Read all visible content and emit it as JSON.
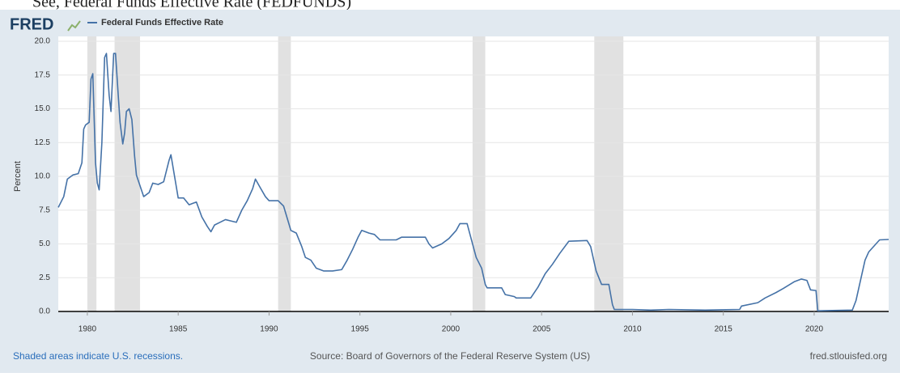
{
  "header": {
    "heading": "See, Federal Funds Effective Rate (FEDFUNDS)",
    "logo": "FRED"
  },
  "chart_data": {
    "type": "line",
    "ylabel": "Percent",
    "x": [
      1978.4,
      1978.7,
      1978.9,
      1979.2,
      1979.5,
      1979.7,
      1979.8,
      1979.9,
      1980.1,
      1980.2,
      1980.3,
      1980.45,
      1980.55,
      1980.65,
      1980.8,
      1980.95,
      1981.05,
      1981.2,
      1981.3,
      1981.45,
      1981.55,
      1981.7,
      1981.8,
      1981.95,
      1982.05,
      1982.15,
      1982.3,
      1982.45,
      1982.6,
      1982.7,
      1982.85,
      1983.1,
      1983.4,
      1983.6,
      1983.9,
      1984.2,
      1984.5,
      1984.6,
      1984.8,
      1985.0,
      1985.3,
      1985.6,
      1985.8,
      1986.0,
      1986.3,
      1986.6,
      1986.8,
      1987.0,
      1987.3,
      1987.6,
      1987.9,
      1988.2,
      1988.5,
      1988.8,
      1989.1,
      1989.25,
      1989.5,
      1989.8,
      1990.0,
      1990.5,
      1990.8,
      1991.0,
      1991.2,
      1991.5,
      1991.8,
      1992.0,
      1992.3,
      1992.6,
      1993.0,
      1993.5,
      1994.0,
      1994.3,
      1994.6,
      1994.9,
      1995.1,
      1995.5,
      1995.8,
      1996.1,
      1996.5,
      1997.0,
      1997.3,
      1998.0,
      1998.6,
      1998.8,
      1999.0,
      1999.5,
      1999.9,
      2000.3,
      2000.5,
      2000.9,
      2001.1,
      2001.4,
      2001.7,
      2001.9,
      2002.0,
      2002.8,
      2003.0,
      2003.5,
      2003.6,
      2004.4,
      2004.8,
      2005.2,
      2005.6,
      2006.0,
      2006.5,
      2007.5,
      2007.7,
      2008.0,
      2008.3,
      2008.7,
      2008.9,
      2009.0,
      2010.0,
      2011.0,
      2012.0,
      2014.0,
      2015.9,
      2016.0,
      2016.9,
      2017.3,
      2017.9,
      2018.3,
      2018.9,
      2019.3,
      2019.6,
      2019.8,
      2020.1,
      2020.2,
      2022.1,
      2022.3,
      2022.5,
      2022.8,
      2023.0,
      2023.4,
      2023.6,
      2024.1
    ],
    "series": [
      {
        "name": "Federal Funds Effective Rate",
        "color": "#4572a7",
        "values": [
          7.7,
          8.5,
          9.8,
          10.1,
          10.2,
          11,
          13.5,
          13.8,
          14,
          17.2,
          17.6,
          11,
          9.5,
          9.0,
          12.5,
          18.8,
          19.1,
          16,
          14.8,
          19.1,
          19.1,
          16,
          14,
          12.4,
          13.2,
          14.8,
          15.0,
          14.2,
          11.5,
          10.1,
          9.5,
          8.5,
          8.8,
          9.5,
          9.4,
          9.6,
          11.2,
          11.6,
          10,
          8.4,
          8.4,
          7.9,
          8.0,
          8.1,
          7.0,
          6.3,
          5.9,
          6.4,
          6.6,
          6.8,
          6.7,
          6.6,
          7.5,
          8.2,
          9.1,
          9.8,
          9.2,
          8.5,
          8.2,
          8.2,
          7.8,
          6.9,
          6.0,
          5.8,
          4.8,
          4.0,
          3.8,
          3.2,
          3.0,
          3.0,
          3.1,
          3.8,
          4.6,
          5.5,
          6.0,
          5.8,
          5.7,
          5.3,
          5.3,
          5.3,
          5.5,
          5.5,
          5.5,
          5.0,
          4.7,
          5.0,
          5.4,
          6.0,
          6.5,
          6.5,
          5.5,
          4.0,
          3.2,
          2.0,
          1.75,
          1.75,
          1.25,
          1.1,
          1.0,
          1.0,
          1.8,
          2.8,
          3.5,
          4.3,
          5.2,
          5.25,
          4.8,
          3.0,
          2.0,
          2.0,
          0.5,
          0.15,
          0.15,
          0.1,
          0.15,
          0.1,
          0.15,
          0.4,
          0.65,
          1.0,
          1.4,
          1.7,
          2.2,
          2.4,
          2.3,
          1.6,
          1.55,
          0.05,
          0.1,
          0.8,
          2.0,
          3.8,
          4.4,
          5.0,
          5.3,
          5.33
        ]
      }
    ],
    "recessions": [
      [
        1980.0,
        1980.5
      ],
      [
        1981.5,
        1982.9
      ],
      [
        1990.5,
        1991.2
      ],
      [
        2001.2,
        2001.9
      ],
      [
        2007.9,
        2009.5
      ],
      [
        2020.1,
        2020.3
      ]
    ],
    "xlim": [
      1978.4,
      2024.1
    ],
    "xticks": [
      1980,
      1985,
      1990,
      1995,
      2000,
      2005,
      2010,
      2015,
      2020
    ],
    "ylim": [
      0,
      20
    ],
    "yticks": [
      {
        "value": 0,
        "label": "0.0"
      },
      2.5,
      {
        "value": 5,
        "label": "5.0"
      },
      7.5,
      {
        "value": 10,
        "label": "10.0"
      },
      12.5,
      {
        "value": 15,
        "label": "15.0"
      },
      17.5,
      {
        "value": 20,
        "label": "20.0"
      }
    ],
    "grid": true
  },
  "footer": {
    "note": "Shaded areas indicate U.S. recessions.",
    "source": "Source: Board of Governors of the Federal Reserve System (US)",
    "site": "fred.stlouisfed.org"
  }
}
